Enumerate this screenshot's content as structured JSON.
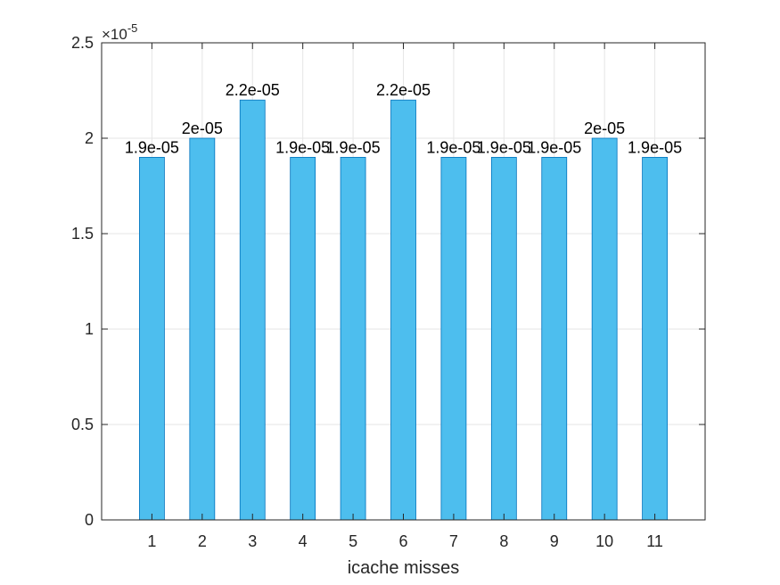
{
  "chart_data": {
    "type": "bar",
    "categories": [
      "1",
      "2",
      "3",
      "4",
      "5",
      "6",
      "7",
      "8",
      "9",
      "10",
      "11"
    ],
    "values": [
      1.9e-05,
      2e-05,
      2.2e-05,
      1.9e-05,
      1.9e-05,
      2.2e-05,
      1.9e-05,
      1.9e-05,
      1.9e-05,
      2e-05,
      1.9e-05
    ],
    "data_labels": [
      "1.9e-05",
      "2e-05",
      "2.2e-05",
      "1.9e-05",
      "1.9e-05",
      "2.2e-05",
      "1.9e-05",
      "1.9e-05",
      "1.9e-05",
      "2e-05",
      "1.9e-05"
    ],
    "title": "",
    "xlabel": "icache misses",
    "ylabel": "",
    "ylim": [
      0,
      2.5e-05
    ],
    "xlim": [
      0,
      12
    ],
    "y_ticks": [
      0,
      0.5,
      1,
      1.5,
      2,
      2.5
    ],
    "y_tick_labels": [
      "0",
      "0.5",
      "1",
      "1.5",
      "2",
      "2.5"
    ],
    "y_exponent_base": "×10",
    "y_exponent_power": "-5",
    "y_tick_scale": 1e-05,
    "grid": true,
    "bar_color": "#4DBEEE",
    "bar_edge_color": "#0072BD"
  }
}
